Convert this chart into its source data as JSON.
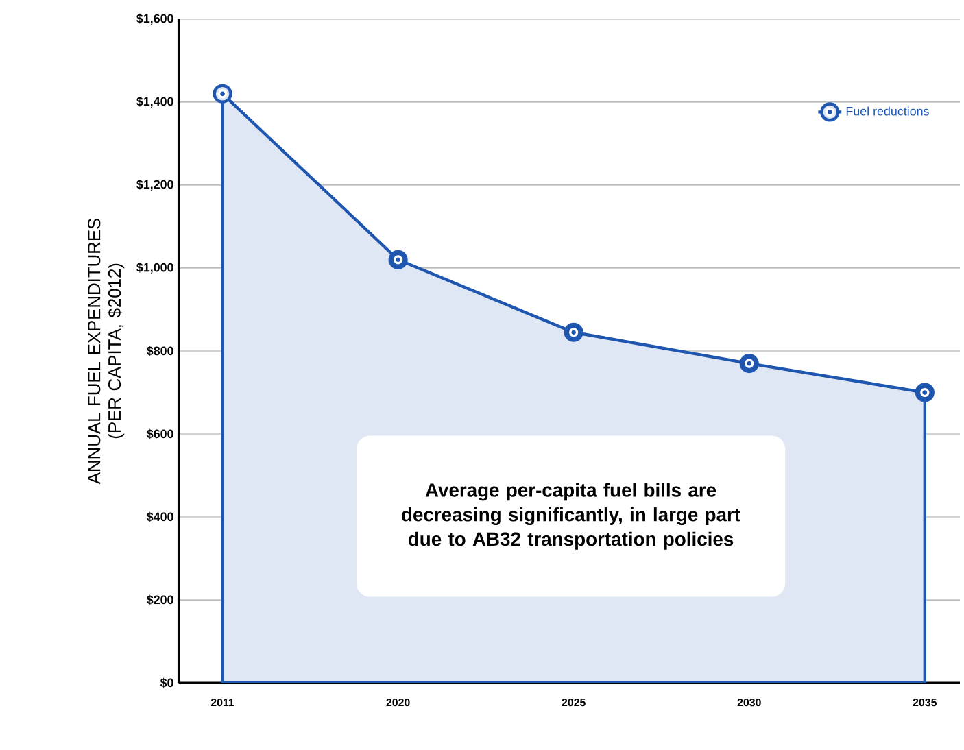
{
  "chart_data": {
    "type": "area",
    "ylabel": "ANNUAL FUEL EXPENDITURES (PER CAPITA, $2012)",
    "categories": [
      "2011",
      "2020",
      "2025",
      "2030",
      "2035"
    ],
    "series": [
      {
        "name": "Fuel reductions",
        "color": "#1f56b0",
        "values": [
          1420,
          1020,
          845,
          770,
          700
        ]
      }
    ],
    "ylim": [
      0,
      1600
    ],
    "yticks": [
      {
        "value": 0,
        "label": "$0"
      },
      {
        "value": 200,
        "label": "$200"
      },
      {
        "value": 400,
        "label": "$400"
      },
      {
        "value": 600,
        "label": "$600"
      },
      {
        "value": 800,
        "label": "$800"
      },
      {
        "value": 1000,
        "label": "$1,000"
      },
      {
        "value": 1200,
        "label": "$1,200"
      },
      {
        "value": 1400,
        "label": "$1,400"
      },
      {
        "value": 1600,
        "label": "$1,600"
      }
    ],
    "grid": "y",
    "legend": "top right",
    "marker": "circle",
    "line_style": "solid",
    "annotations": [
      "Average per-capita fuel bills are decreasing significantly, in large part due to AB32 transportation policies"
    ]
  }
}
